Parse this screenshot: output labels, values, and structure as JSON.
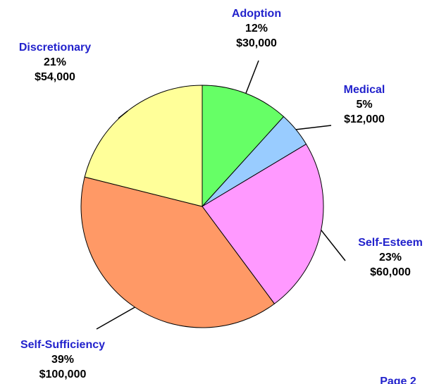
{
  "chart_data": {
    "type": "pie",
    "categories": [
      "Adoption",
      "Medical",
      "Self-Esteem",
      "Self-Sufficiency",
      "Discretionary"
    ],
    "values": [
      30000,
      12000,
      60000,
      100000,
      54000
    ],
    "value_labels": [
      "$30,000",
      "$12,000",
      "$60,000",
      "$100,000",
      "$54,000"
    ],
    "percents": [
      12,
      5,
      23,
      39,
      21
    ],
    "percent_labels": [
      "12%",
      "5%",
      "23%",
      "39%",
      "21%"
    ],
    "colors": [
      "#66ff66",
      "#99ccff",
      "#ff99ff",
      "#ff9966",
      "#ffff99"
    ],
    "page_label": "Page  2"
  }
}
